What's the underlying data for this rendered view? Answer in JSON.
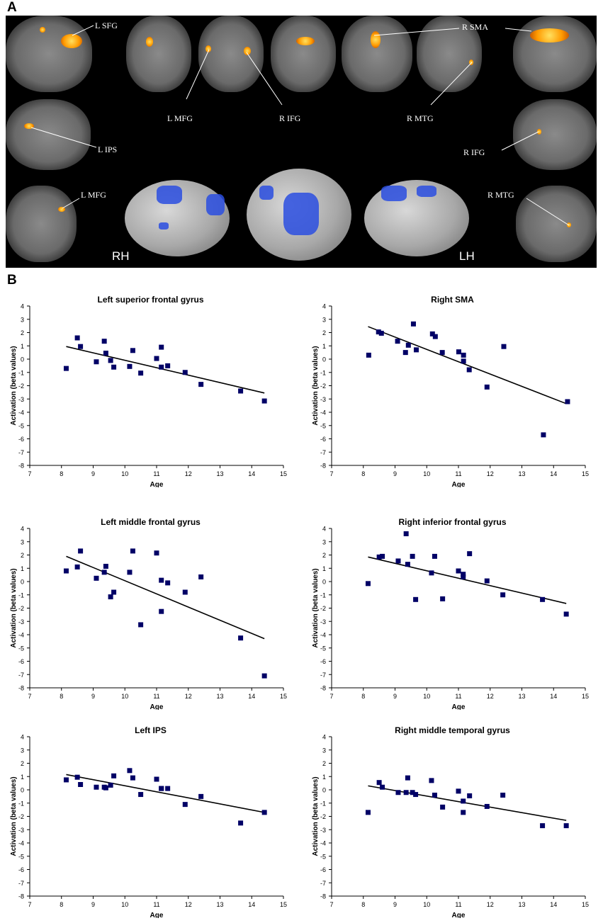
{
  "panel_a": {
    "letter": "A",
    "labels": [
      "L  SFG",
      "R  SMA",
      "L  MFG",
      "R  IFG",
      "R  MTG",
      "L  IPS",
      "R  IFG",
      "L  MFG",
      "R  MTG"
    ],
    "hemispheres": [
      "RH",
      "LH"
    ],
    "colors": {
      "activation_hot": "#ff9a00",
      "activation_3d": "#2a4ee0"
    }
  },
  "panel_b": {
    "letter": "B"
  },
  "chart_data": [
    {
      "type": "scatter",
      "title": "Left superior frontal gyrus",
      "xlabel": "Age",
      "ylabel": "Activation (beta values)",
      "xlim": [
        7,
        15
      ],
      "ylim": [
        -8,
        4
      ],
      "xticks": [
        "7",
        "8",
        "9",
        "10",
        "11",
        "12",
        "13",
        "14",
        "15"
      ],
      "yticks": [
        "4",
        "3",
        "2",
        "1",
        "0",
        "-1",
        "-2",
        "-3",
        "-4",
        "-5",
        "-6",
        "-7",
        "-8"
      ],
      "points": [
        [
          8.15,
          -0.7
        ],
        [
          8.5,
          1.6
        ],
        [
          8.6,
          0.95
        ],
        [
          9.1,
          -0.2
        ],
        [
          9.35,
          1.35
        ],
        [
          9.4,
          0.45
        ],
        [
          9.55,
          -0.1
        ],
        [
          9.65,
          -0.6
        ],
        [
          10.15,
          -0.55
        ],
        [
          10.25,
          0.65
        ],
        [
          10.5,
          -1.05
        ],
        [
          11.0,
          0.05
        ],
        [
          11.15,
          0.9
        ],
        [
          11.15,
          -0.6
        ],
        [
          11.35,
          -0.5
        ],
        [
          11.9,
          -1.0
        ],
        [
          12.4,
          -1.9
        ],
        [
          13.65,
          -2.4
        ],
        [
          14.4,
          -3.15
        ]
      ],
      "trendline": [
        [
          8.15,
          0.95
        ],
        [
          14.4,
          -2.55
        ]
      ],
      "marker_color": "#000066"
    },
    {
      "type": "scatter",
      "title": "Right SMA",
      "xlabel": "Age",
      "ylabel": "Activation (beta values)",
      "xlim": [
        7,
        15
      ],
      "ylim": [
        -8,
        4
      ],
      "xticks": [
        "7",
        "8",
        "9",
        "10",
        "11",
        "12",
        "13",
        "14",
        "15"
      ],
      "yticks": [
        "4",
        "3",
        "2",
        "1",
        "0",
        "-1",
        "-2",
        "-3",
        "-4",
        "-5",
        "-6",
        "-7",
        "-8"
      ],
      "points": [
        [
          8.17,
          0.3
        ],
        [
          8.48,
          2.05
        ],
        [
          8.57,
          1.95
        ],
        [
          9.08,
          1.35
        ],
        [
          9.33,
          0.5
        ],
        [
          9.42,
          1.05
        ],
        [
          9.58,
          2.65
        ],
        [
          9.67,
          0.7
        ],
        [
          10.18,
          1.9
        ],
        [
          10.27,
          1.7
        ],
        [
          10.49,
          0.5
        ],
        [
          11.01,
          0.55
        ],
        [
          11.16,
          0.3
        ],
        [
          11.16,
          -0.15
        ],
        [
          11.34,
          -0.8
        ],
        [
          11.9,
          -2.1
        ],
        [
          12.43,
          0.95
        ],
        [
          13.68,
          -5.7
        ],
        [
          14.44,
          -3.2
        ]
      ],
      "trendline": [
        [
          8.15,
          2.45
        ],
        [
          14.4,
          -3.35
        ]
      ],
      "marker_color": "#000066"
    },
    {
      "type": "scatter",
      "title": "Left middle frontal gyrus",
      "xlabel": "Age",
      "ylabel": "Activation (beta values)",
      "xlim": [
        7,
        15
      ],
      "ylim": [
        -8,
        4
      ],
      "xticks": [
        "7",
        "8",
        "9",
        "10",
        "11",
        "12",
        "13",
        "14",
        "15"
      ],
      "yticks": [
        "4",
        "3",
        "2",
        "1",
        "0",
        "-1",
        "-2",
        "-3",
        "-4",
        "-5",
        "-6",
        "-7",
        "-8"
      ],
      "points": [
        [
          8.15,
          0.8
        ],
        [
          8.5,
          1.1
        ],
        [
          8.6,
          2.3
        ],
        [
          9.1,
          0.25
        ],
        [
          9.35,
          0.7
        ],
        [
          9.4,
          1.15
        ],
        [
          9.55,
          -1.15
        ],
        [
          9.65,
          -0.8
        ],
        [
          10.15,
          0.7
        ],
        [
          10.25,
          2.3
        ],
        [
          10.5,
          -3.25
        ],
        [
          11.0,
          2.15
        ],
        [
          11.15,
          0.1
        ],
        [
          11.15,
          -2.25
        ],
        [
          11.35,
          -0.1
        ],
        [
          11.9,
          -0.8
        ],
        [
          12.4,
          0.35
        ],
        [
          13.65,
          -4.25
        ],
        [
          14.4,
          -7.1
        ]
      ],
      "trendline": [
        [
          8.15,
          1.9
        ],
        [
          14.4,
          -4.3
        ]
      ],
      "marker_color": "#000066"
    },
    {
      "type": "scatter",
      "title": "Right inferior frontal gyrus",
      "xlabel": "Age",
      "ylabel": "Activation (beta values)",
      "xlim": [
        7,
        15
      ],
      "ylim": [
        -8,
        4
      ],
      "xticks": [
        "7",
        "8",
        "9",
        "10",
        "11",
        "12",
        "13",
        "14",
        "15"
      ],
      "yticks": [
        "4",
        "3",
        "2",
        "1",
        "0",
        "-1",
        "-2",
        "-3",
        "-4",
        "-5",
        "-6",
        "-7",
        "-8"
      ],
      "points": [
        [
          8.15,
          -0.15
        ],
        [
          8.5,
          1.85
        ],
        [
          8.6,
          1.9
        ],
        [
          9.1,
          1.55
        ],
        [
          9.35,
          3.6
        ],
        [
          9.4,
          1.3
        ],
        [
          9.55,
          1.9
        ],
        [
          9.65,
          -1.35
        ],
        [
          10.15,
          0.65
        ],
        [
          10.25,
          1.9
        ],
        [
          10.5,
          -1.3
        ],
        [
          11.0,
          0.8
        ],
        [
          11.15,
          0.55
        ],
        [
          11.15,
          0.35
        ],
        [
          11.35,
          2.1
        ],
        [
          11.9,
          0.05
        ],
        [
          12.4,
          -1.0
        ],
        [
          13.65,
          -1.35
        ],
        [
          14.4,
          -2.45
        ]
      ],
      "trendline": [
        [
          8.15,
          1.85
        ],
        [
          14.4,
          -1.65
        ]
      ],
      "marker_color": "#000066"
    },
    {
      "type": "scatter",
      "title": "Left IPS",
      "xlabel": "Age",
      "ylabel": "Activation (beta values)",
      "xlim": [
        7,
        15
      ],
      "ylim": [
        -8,
        4
      ],
      "xticks": [
        "7",
        "8",
        "9",
        "10",
        "11",
        "12",
        "13",
        "14",
        "15"
      ],
      "yticks": [
        "4",
        "3",
        "2",
        "1",
        "0",
        "-1",
        "-2",
        "-3",
        "-4",
        "-5",
        "-6",
        "-7",
        "-8"
      ],
      "points": [
        [
          8.15,
          0.75
        ],
        [
          8.5,
          0.95
        ],
        [
          8.6,
          0.4
        ],
        [
          9.1,
          0.2
        ],
        [
          9.35,
          0.2
        ],
        [
          9.4,
          0.15
        ],
        [
          9.55,
          0.35
        ],
        [
          9.65,
          1.05
        ],
        [
          10.15,
          1.45
        ],
        [
          10.25,
          0.9
        ],
        [
          10.5,
          -0.35
        ],
        [
          11.0,
          0.8
        ],
        [
          11.15,
          0.1
        ],
        [
          11.15,
          0.1
        ],
        [
          11.35,
          0.1
        ],
        [
          11.9,
          -1.1
        ],
        [
          12.4,
          -0.5
        ],
        [
          13.65,
          -2.5
        ],
        [
          14.4,
          -1.7
        ]
      ],
      "trendline": [
        [
          8.15,
          1.15
        ],
        [
          14.4,
          -1.7
        ]
      ],
      "marker_color": "#000066"
    },
    {
      "type": "scatter",
      "title": "Right middle temporal gyrus",
      "xlabel": "Age",
      "ylabel": "Activation (beta values)",
      "xlim": [
        7,
        15
      ],
      "ylim": [
        -8,
        4
      ],
      "xticks": [
        "7",
        "8",
        "9",
        "10",
        "11",
        "12",
        "13",
        "14",
        "15"
      ],
      "yticks": [
        "4",
        "3",
        "2",
        "1",
        "0",
        "-1",
        "-2",
        "-3",
        "-4",
        "-5",
        "-6",
        "-7",
        "-8"
      ],
      "points": [
        [
          8.15,
          -1.7
        ],
        [
          8.5,
          0.55
        ],
        [
          8.6,
          0.2
        ],
        [
          9.1,
          -0.2
        ],
        [
          9.35,
          -0.2
        ],
        [
          9.4,
          0.9
        ],
        [
          9.55,
          -0.2
        ],
        [
          9.65,
          -0.35
        ],
        [
          10.15,
          0.7
        ],
        [
          10.25,
          -0.4
        ],
        [
          10.5,
          -1.3
        ],
        [
          11.0,
          -0.1
        ],
        [
          11.15,
          -0.85
        ],
        [
          11.15,
          -1.7
        ],
        [
          11.35,
          -0.45
        ],
        [
          11.9,
          -1.25
        ],
        [
          12.4,
          -0.4
        ],
        [
          13.65,
          -2.7
        ],
        [
          14.4,
          -2.7
        ]
      ],
      "trendline": [
        [
          8.15,
          0.3
        ],
        [
          14.4,
          -2.3
        ]
      ],
      "marker_color": "#000066"
    }
  ]
}
